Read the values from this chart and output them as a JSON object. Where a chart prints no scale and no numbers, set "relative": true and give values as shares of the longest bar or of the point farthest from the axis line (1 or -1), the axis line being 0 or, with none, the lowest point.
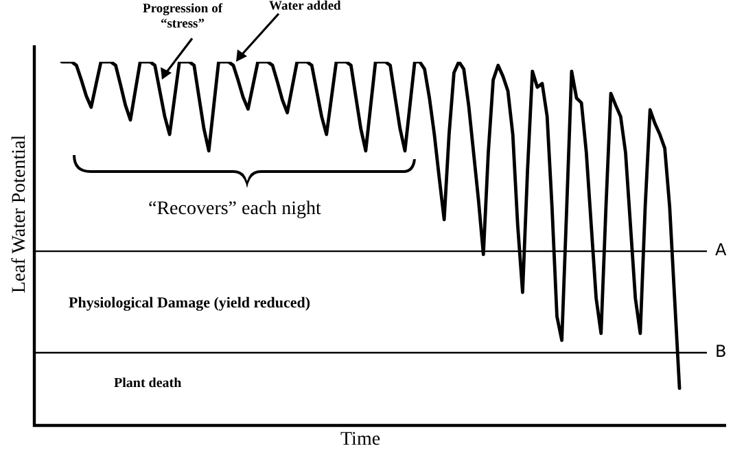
{
  "chart_data": {
    "type": "line",
    "relative": true,
    "xlabel": "Time",
    "ylabel": "Leaf Water Potential",
    "legend": false,
    "marker": "none",
    "line_style": "solid",
    "categories": [
      null,
      null,
      null,
      null,
      null,
      null,
      null,
      null,
      null,
      null,
      null,
      null,
      null,
      null,
      null,
      null,
      null,
      null,
      null,
      null,
      null,
      null,
      null,
      null,
      null,
      null,
      null,
      null,
      null,
      null,
      null,
      null,
      null,
      null,
      null,
      null,
      null,
      null,
      null,
      null,
      null,
      null,
      null,
      null,
      null,
      null,
      null,
      null,
      null,
      null,
      null,
      null,
      null,
      null,
      null,
      null,
      null,
      null,
      null,
      null,
      null,
      null,
      null,
      null,
      null,
      null,
      null,
      null,
      null,
      null,
      null,
      null,
      null,
      null,
      null,
      null,
      null,
      null,
      null,
      null,
      null,
      null,
      null,
      null,
      null,
      null,
      null,
      null,
      null,
      null,
      null,
      null,
      null,
      null,
      null,
      null,
      null,
      null,
      null,
      null,
      null,
      null,
      null,
      null,
      null,
      null,
      null,
      null,
      null,
      null,
      null,
      null,
      null,
      null,
      null,
      null,
      null,
      null,
      null,
      null,
      null,
      null,
      null,
      null,
      null,
      null,
      null
    ],
    "series": [
      {
        "color": "#000000",
        "values": [
          1,
          1,
          1,
          0.99,
          0.95,
          0.906,
          0.875,
          0.938,
          1,
          1,
          1,
          0.99,
          0.936,
          0.88,
          0.84,
          0.92,
          1,
          1,
          1,
          0.99,
          0.92,
          0.85,
          0.8,
          0.9,
          1,
          1,
          1,
          0.99,
          0.902,
          0.816,
          0.755,
          0.878,
          1,
          1,
          1,
          0.99,
          0.948,
          0.902,
          0.87,
          0.935,
          1,
          1,
          1,
          0.99,
          0.944,
          0.895,
          0.86,
          0.93,
          1,
          1,
          1,
          0.99,
          0.92,
          0.85,
          0.8,
          0.9,
          1,
          1,
          1,
          0.99,
          0.902,
          0.816,
          0.755,
          0.878,
          1,
          1,
          1,
          0.99,
          0.902,
          0.816,
          0.755,
          0.878,
          1,
          1,
          0.98,
          0.9,
          0.8,
          0.68,
          0.566,
          0.8,
          0.97,
          1,
          0.98,
          0.88,
          0.75,
          0.62,
          0.47,
          0.75,
          0.95,
          0.99,
          0.96,
          0.92,
          0.8,
          0.55,
          0.366,
          0.7,
          0.974,
          0.93,
          0.94,
          0.85,
          0.6,
          0.3,
          0.234,
          0.6,
          0.974,
          0.9,
          0.887,
          0.75,
          0.55,
          0.35,
          0.253,
          0.6,
          0.913,
          0.88,
          0.849,
          0.75,
          0.55,
          0.35,
          0.253,
          0.6,
          0.868,
          0.83,
          0.8,
          0.762,
          0.6,
          0.35,
          0.102
        ]
      }
    ],
    "ref_lines": [
      {
        "axis": "y",
        "value": 0.479,
        "label": "A",
        "color": "#000000"
      },
      {
        "axis": "y",
        "value": 0.2,
        "label": "B",
        "color": "#000000"
      }
    ],
    "annotations": [
      "Progression of “stress”",
      "Water added",
      "“Recovers” each night",
      "Physiological Damage (yield reduced)",
      "Plant death"
    ]
  }
}
